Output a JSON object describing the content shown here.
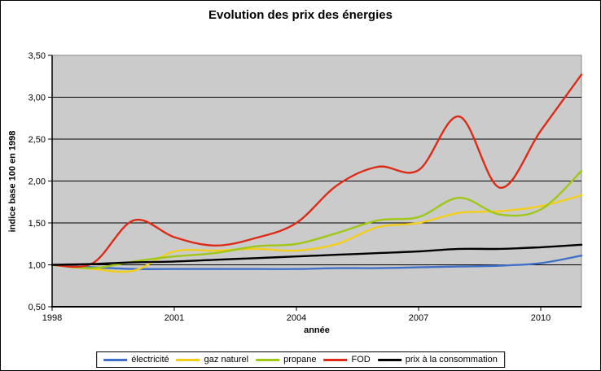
{
  "frame": {
    "background": "#FFFFFF",
    "border_color": "#000000"
  },
  "chart_data": {
    "type": "line",
    "title": "Evolution des prix des énergies",
    "xlabel": "année",
    "ylabel": "indice base 100 en 1998",
    "grid": true,
    "legend_position": "bottom",
    "plot_background": "#CBCBCB",
    "gridline_color": "#000000",
    "axis_color": "#000000",
    "xlim": [
      1998,
      2011
    ],
    "ylim": [
      0.5,
      3.5
    ],
    "x_ticks": [
      {
        "value": 1998,
        "label": "1998"
      },
      {
        "value": 2001,
        "label": "2001"
      },
      {
        "value": 2004,
        "label": "2004"
      },
      {
        "value": 2007,
        "label": "2007"
      },
      {
        "value": 2010,
        "label": "2010"
      }
    ],
    "y_ticks": [
      {
        "value": 0.5,
        "label": "0,50"
      },
      {
        "value": 1.0,
        "label": "1,00"
      },
      {
        "value": 1.5,
        "label": "1,50"
      },
      {
        "value": 2.0,
        "label": "2,00"
      },
      {
        "value": 2.5,
        "label": "2,50"
      },
      {
        "value": 3.0,
        "label": "3,00"
      },
      {
        "value": 3.5,
        "label": "3,50"
      }
    ],
    "x": [
      1998,
      1999,
      2000,
      2001,
      2002,
      2003,
      2004,
      2005,
      2006,
      2007,
      2008,
      2009,
      2010,
      2011
    ],
    "series": [
      {
        "name": "électricité",
        "color": "#4170C8",
        "values": [
          1.0,
          0.97,
          0.95,
          0.95,
          0.95,
          0.95,
          0.95,
          0.96,
          0.96,
          0.97,
          0.98,
          0.99,
          1.02,
          1.11
        ]
      },
      {
        "name": "gaz naturel",
        "color": "#F2CE1B",
        "values": [
          1.0,
          0.95,
          0.93,
          1.16,
          1.17,
          1.19,
          1.17,
          1.25,
          1.45,
          1.5,
          1.62,
          1.64,
          1.7,
          1.83
        ]
      },
      {
        "name": "propane",
        "color": "#9FC716",
        "values": [
          1.0,
          0.96,
          1.04,
          1.1,
          1.14,
          1.22,
          1.25,
          1.38,
          1.53,
          1.57,
          1.8,
          1.6,
          1.66,
          2.12
        ]
      },
      {
        "name": "FOD",
        "color": "#DC2B17",
        "values": [
          1.0,
          1.02,
          1.53,
          1.33,
          1.23,
          1.32,
          1.5,
          1.95,
          2.17,
          2.13,
          2.77,
          1.92,
          2.6,
          3.27
        ]
      },
      {
        "name": "prix à la consommation",
        "color": "#000000",
        "values": [
          1.0,
          1.01,
          1.03,
          1.04,
          1.06,
          1.08,
          1.1,
          1.12,
          1.14,
          1.16,
          1.19,
          1.19,
          1.21,
          1.24
        ]
      }
    ]
  }
}
